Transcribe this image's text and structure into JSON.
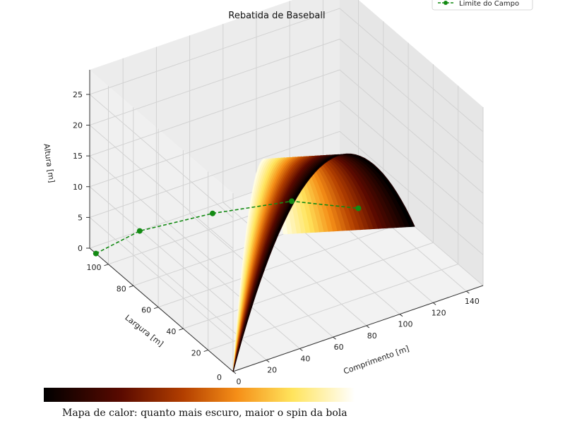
{
  "chart_data": {
    "type": "surface3d",
    "title": "Rebatida de Baseball",
    "xlabel": "Comprimento [m]",
    "ylabel": "Largura [m]",
    "zlabel": "Altura [m]",
    "xticks": [
      0,
      20,
      40,
      60,
      80,
      100,
      120,
      140
    ],
    "yticks": [
      20,
      40,
      60,
      80,
      100
    ],
    "zticks": [
      0,
      5,
      10,
      15,
      20,
      25
    ],
    "xlim": [
      0,
      150
    ],
    "ylim": [
      0,
      115
    ],
    "zlim": [
      0,
      29
    ],
    "surface": {
      "peak_height": 22,
      "colormap": "afmhot",
      "trajectories": 30,
      "start_x": 0,
      "start_y": 0,
      "end_x_range": [
        90,
        150
      ],
      "end_y_range": [
        55,
        80
      ]
    },
    "field_limit": {
      "name": "Limite do Campo",
      "color": "#138a13",
      "points": [
        {
          "x": 0,
          "y": 110
        },
        {
          "x": 30,
          "y": 115
        },
        {
          "x": 70,
          "y": 110
        },
        {
          "x": 110,
          "y": 100
        },
        {
          "x": 135,
          "y": 80
        }
      ]
    },
    "legend_position": "top-right",
    "grid": true
  },
  "colorbar": {
    "caption": "Mapa de calor: quanto mais escuro, maior o spin da bola"
  }
}
